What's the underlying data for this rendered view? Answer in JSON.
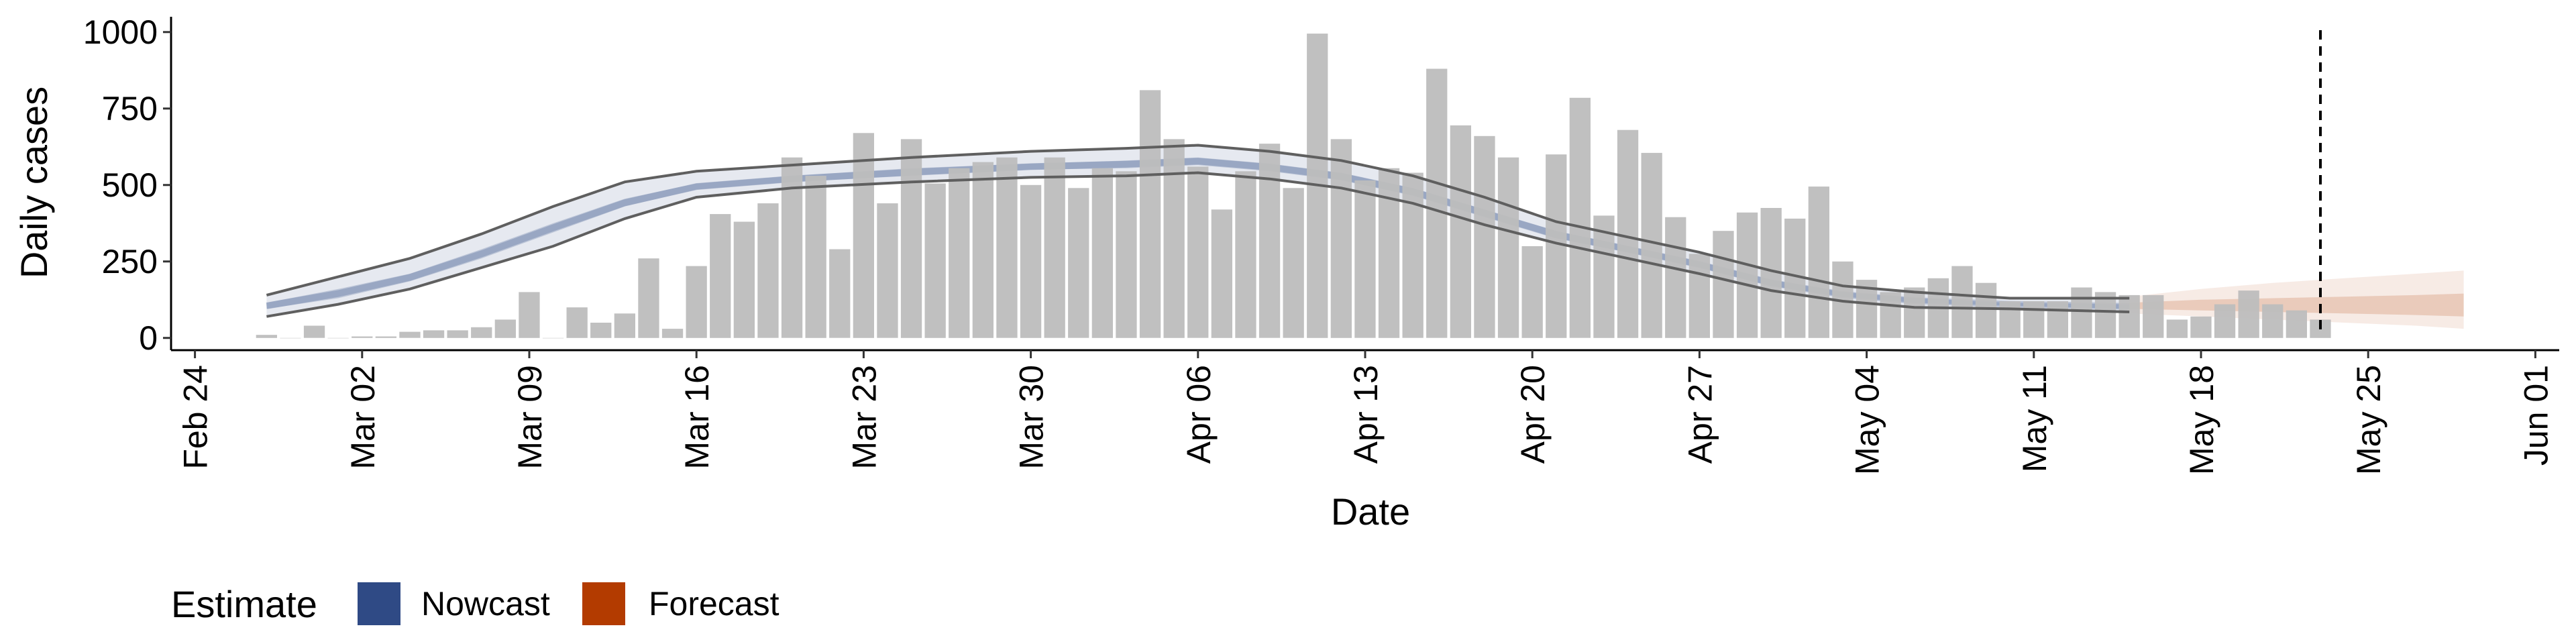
{
  "chart_data": {
    "type": "bar",
    "xlabel": "Date",
    "ylabel": "Daily cases",
    "x_tick_labels": [
      "Feb 24",
      "Mar 02",
      "Mar 09",
      "Mar 16",
      "Mar 23",
      "Mar 30",
      "Apr 06",
      "Apr 13",
      "Apr 20",
      "Apr 27",
      "May 04",
      "May 11",
      "May 18",
      "May 25",
      "Jun 01"
    ],
    "y_ticks": [
      0,
      250,
      500,
      750,
      1000
    ],
    "ylim": [
      -40,
      1050
    ],
    "x_range": [
      "2020-02-23",
      "2020-06-02"
    ],
    "grid": false,
    "legend_position": "bottom-left",
    "legend": {
      "title": "Estimate",
      "items": [
        {
          "label": "Nowcast",
          "color": "#2f4a85"
        },
        {
          "label": "Forecast",
          "color": "#b33b00"
        }
      ]
    },
    "vline_date": "2020-05-23",
    "bars": {
      "color": "#bdbdbd",
      "dates": [
        "2020-02-27",
        "2020-02-28",
        "2020-02-29",
        "2020-03-01",
        "2020-03-02",
        "2020-03-03",
        "2020-03-04",
        "2020-03-05",
        "2020-03-06",
        "2020-03-07",
        "2020-03-08",
        "2020-03-09",
        "2020-03-10",
        "2020-03-11",
        "2020-03-12",
        "2020-03-13",
        "2020-03-14",
        "2020-03-15",
        "2020-03-16",
        "2020-03-17",
        "2020-03-18",
        "2020-03-19",
        "2020-03-20",
        "2020-03-21",
        "2020-03-22",
        "2020-03-23",
        "2020-03-24",
        "2020-03-25",
        "2020-03-26",
        "2020-03-27",
        "2020-03-28",
        "2020-03-29",
        "2020-03-30",
        "2020-03-31",
        "2020-04-01",
        "2020-04-02",
        "2020-04-03",
        "2020-04-04",
        "2020-04-05",
        "2020-04-06",
        "2020-04-07",
        "2020-04-08",
        "2020-04-09",
        "2020-04-10",
        "2020-04-11",
        "2020-04-12",
        "2020-04-13",
        "2020-04-14",
        "2020-04-15",
        "2020-04-16",
        "2020-04-17",
        "2020-04-18",
        "2020-04-19",
        "2020-04-20",
        "2020-04-21",
        "2020-04-22",
        "2020-04-23",
        "2020-04-24",
        "2020-04-25",
        "2020-04-26",
        "2020-04-27",
        "2020-04-28",
        "2020-04-29",
        "2020-04-30",
        "2020-05-01",
        "2020-05-02",
        "2020-05-03",
        "2020-05-04",
        "2020-05-05",
        "2020-05-06",
        "2020-05-07",
        "2020-05-08",
        "2020-05-09",
        "2020-05-10",
        "2020-05-11",
        "2020-05-12",
        "2020-05-13",
        "2020-05-14",
        "2020-05-15",
        "2020-05-16",
        "2020-05-17",
        "2020-05-18",
        "2020-05-19",
        "2020-05-20",
        "2020-05-21",
        "2020-05-22",
        "2020-05-23"
      ],
      "values": [
        10,
        0,
        40,
        0,
        5,
        5,
        20,
        25,
        25,
        35,
        60,
        150,
        0,
        100,
        50,
        80,
        260,
        30,
        235,
        405,
        380,
        440,
        590,
        530,
        290,
        670,
        440,
        650,
        505,
        555,
        575,
        590,
        500,
        590,
        490,
        555,
        545,
        810,
        650,
        560,
        420,
        545,
        635,
        490,
        995,
        650,
        515,
        555,
        540,
        880,
        695,
        660,
        590,
        300,
        600,
        785,
        400,
        680,
        605,
        395,
        275,
        350,
        410,
        425,
        390,
        495,
        250,
        190,
        150,
        165,
        195,
        235,
        180,
        120,
        120,
        120,
        165,
        150,
        140,
        140,
        60,
        70,
        110,
        155,
        110,
        90,
        60
      ]
    },
    "nowcast": {
      "color": "#2f4a85",
      "x": [
        "2020-02-27",
        "2020-03-01",
        "2020-03-04",
        "2020-03-07",
        "2020-03-10",
        "2020-03-13",
        "2020-03-16",
        "2020-03-20",
        "2020-03-25",
        "2020-03-30",
        "2020-04-03",
        "2020-04-06",
        "2020-04-09",
        "2020-04-12",
        "2020-04-15",
        "2020-04-18",
        "2020-04-21",
        "2020-04-24",
        "2020-04-27",
        "2020-04-30",
        "2020-05-03",
        "2020-05-06",
        "2020-05-10",
        "2020-05-15"
      ],
      "outer_upper": [
        140,
        200,
        260,
        340,
        430,
        510,
        545,
        565,
        590,
        610,
        620,
        630,
        610,
        580,
        530,
        460,
        380,
        330,
        280,
        220,
        170,
        150,
        130,
        130
      ],
      "outer_lower": [
        70,
        110,
        160,
        230,
        300,
        390,
        460,
        490,
        510,
        525,
        530,
        540,
        520,
        490,
        440,
        370,
        310,
        260,
        210,
        155,
        120,
        100,
        95,
        85
      ],
      "inner_upper": [
        115,
        160,
        210,
        290,
        375,
        455,
        505,
        530,
        555,
        570,
        580,
        590,
        570,
        540,
        490,
        420,
        350,
        300,
        250,
        190,
        150,
        130,
        115,
        110
      ],
      "inner_lower": [
        95,
        130,
        185,
        260,
        345,
        430,
        485,
        510,
        530,
        550,
        555,
        565,
        545,
        515,
        465,
        395,
        325,
        280,
        230,
        170,
        135,
        115,
        105,
        95
      ],
      "median": [
        105,
        145,
        198,
        275,
        360,
        442,
        495,
        520,
        542,
        560,
        568,
        578,
        558,
        528,
        478,
        408,
        338,
        290,
        240,
        180,
        142,
        122,
        110,
        103
      ]
    },
    "forecast": {
      "color": "#b33b00",
      "x": [
        "2020-05-15",
        "2020-05-18",
        "2020-05-21",
        "2020-05-24",
        "2020-05-27",
        "2020-05-29"
      ],
      "outer_upper": [
        135,
        160,
        180,
        195,
        210,
        220
      ],
      "outer_lower": [
        80,
        70,
        60,
        50,
        40,
        30
      ],
      "inner_upper": [
        115,
        125,
        130,
        135,
        140,
        145
      ],
      "inner_lower": [
        95,
        90,
        85,
        80,
        75,
        70
      ],
      "median": [
        105,
        107,
        107,
        107,
        107,
        107
      ]
    }
  }
}
